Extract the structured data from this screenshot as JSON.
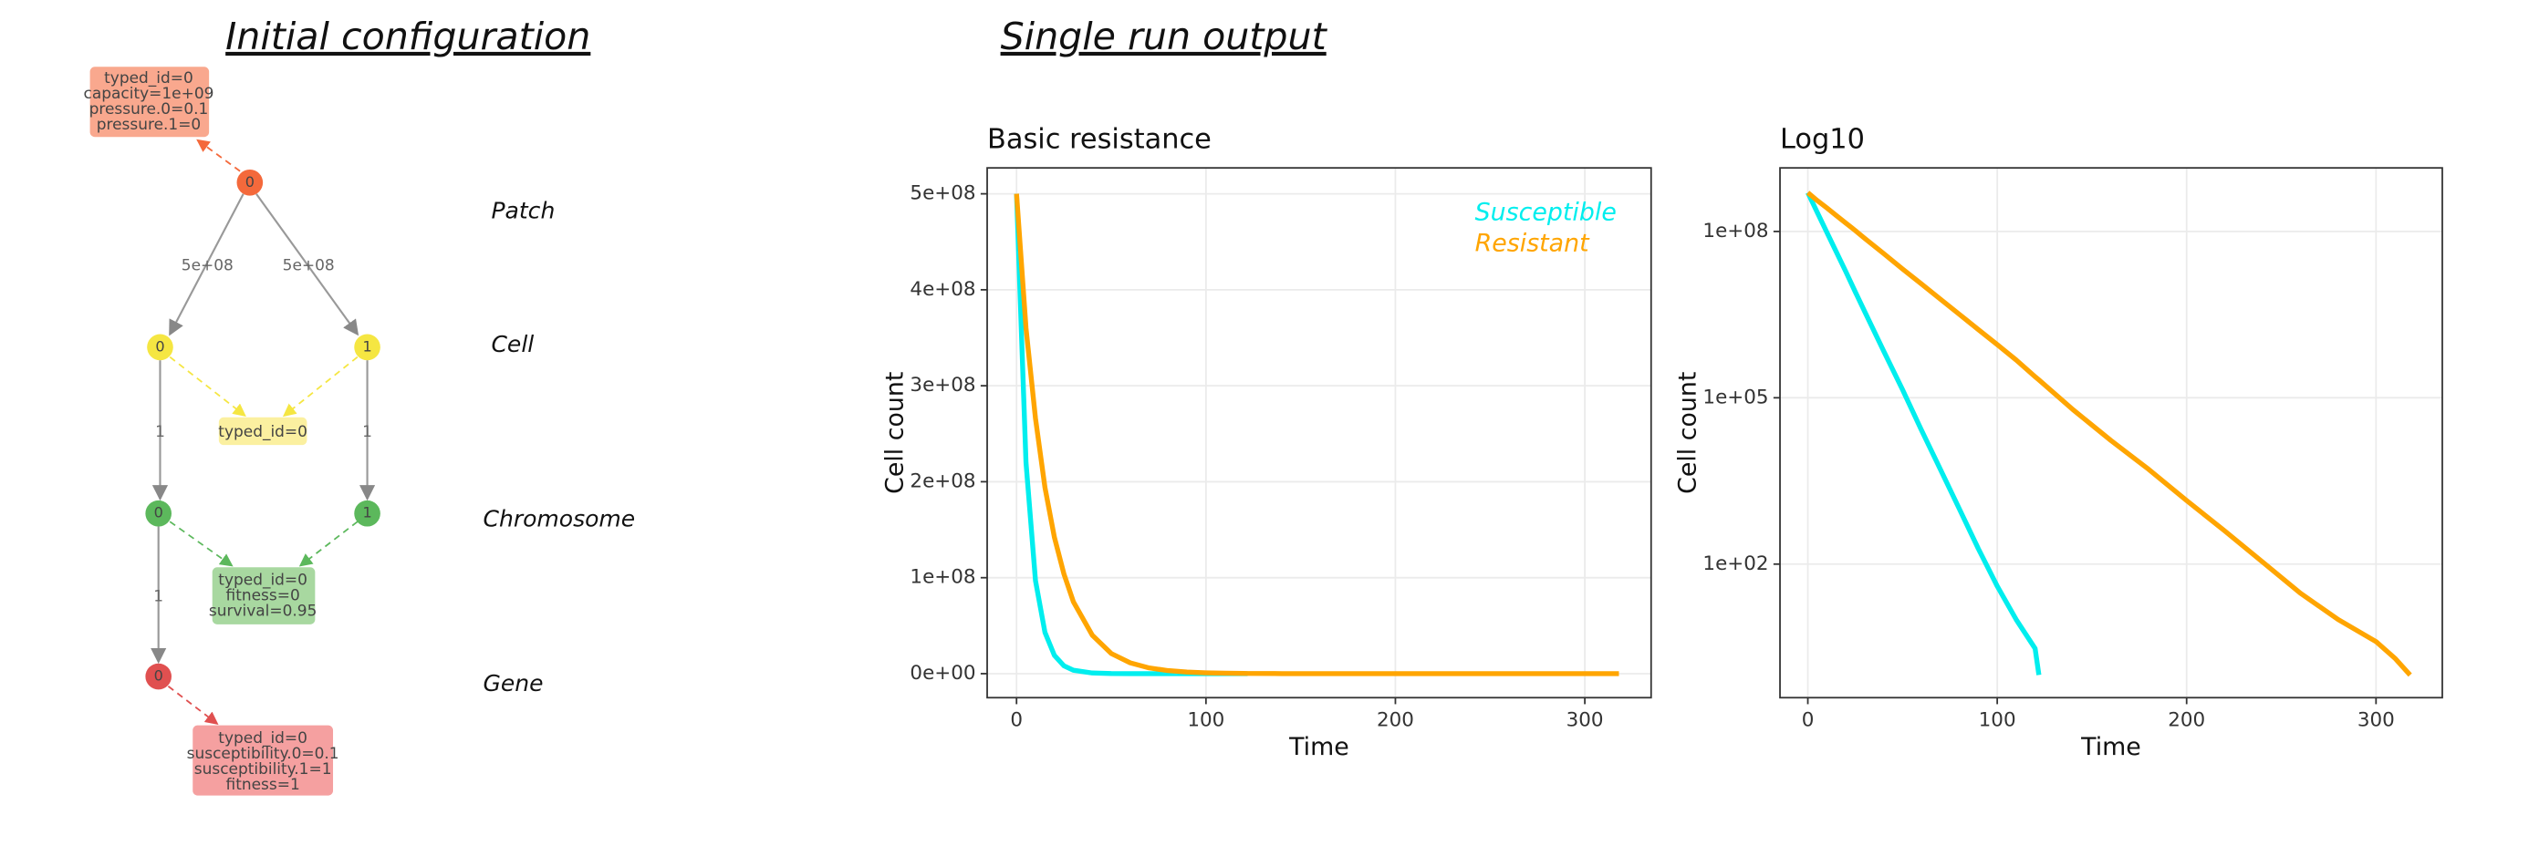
{
  "diagram": {
    "title": "Initial configuration",
    "levels": [
      "Patch",
      "Cell",
      "Chromosome",
      "Gene"
    ],
    "nodes": [
      "0",
      "0",
      "1",
      "0",
      "1",
      "0"
    ],
    "edge_labels": [
      "5e+08",
      "5e+08",
      "1",
      "1",
      "1"
    ],
    "boxes": [
      [
        "typed_id=0",
        "capacity=1e+09",
        "pressure.0=0.1",
        "pressure.1=0"
      ],
      [
        "typed_id=0"
      ],
      [
        "typed_id=0",
        "fitness=0",
        "survival=0.95"
      ],
      [
        "typed_id=0",
        "susceptibility.0=0.1",
        "susceptibility.1=1",
        "fitness=1"
      ]
    ]
  },
  "output_title": "Single run output",
  "chart_data": [
    {
      "type": "line",
      "title": "Basic resistance",
      "x_label": "Time",
      "y_label": "Cell count",
      "log_y": false,
      "grid": true,
      "legend": "top-right",
      "x": [
        0,
        5,
        10,
        15,
        20,
        25,
        30,
        40,
        50,
        60,
        70,
        80,
        90,
        100,
        110,
        120,
        122,
        140,
        160,
        180,
        200,
        220,
        240,
        260,
        280,
        300,
        310,
        318
      ],
      "series": [
        {
          "name": "Susceptible",
          "color": "#00eeee",
          "values": [
            500000000,
            220000000,
            97000000,
            43000000,
            19000000,
            8200000,
            3600000,
            700000,
            140000,
            26000,
            5100,
            990,
            190,
            40,
            10,
            3,
            1,
            null,
            null,
            null,
            null,
            null,
            null,
            null,
            null,
            null,
            null,
            null
          ]
        },
        {
          "name": "Resistant",
          "color": "#ffa500",
          "values": [
            500000000,
            360000000,
            266000000,
            194000000,
            142000000,
            104000000,
            75000000,
            40000000,
            21000000,
            11300000,
            6000000,
            3200000,
            1700000,
            910000,
            480000,
            240000,
            210000,
            61000,
            17000,
            5100,
            1400,
            400,
            110,
            30,
            10,
            4,
            2,
            1
          ]
        }
      ],
      "xlim": [
        -15.5,
        335
      ],
      "xticks": [
        0,
        100,
        200,
        300
      ],
      "ylim": [
        -25000000,
        527000000
      ],
      "yticks": [
        {
          "value": 0,
          "label": "0e+00"
        },
        {
          "value": 100000000,
          "label": "1e+08"
        },
        {
          "value": 200000000,
          "label": "2e+08"
        },
        {
          "value": 300000000,
          "label": "3e+08"
        },
        {
          "value": 400000000,
          "label": "4e+08"
        },
        {
          "value": 500000000,
          "label": "5e+08"
        }
      ]
    },
    {
      "type": "line",
      "title": "Log10",
      "x_label": "Time",
      "y_label": "Cell count",
      "log_y": true,
      "grid": true,
      "legend": false,
      "x": [
        0,
        5,
        10,
        15,
        20,
        25,
        30,
        40,
        50,
        60,
        70,
        80,
        90,
        100,
        110,
        120,
        122,
        140,
        160,
        180,
        200,
        220,
        240,
        260,
        280,
        300,
        310,
        318
      ],
      "series": [
        {
          "name": "Susceptible",
          "color": "#00eeee",
          "values": [
            500000000,
            220000000,
            97000000,
            43000000,
            19000000,
            8200000,
            3600000,
            700000,
            140000,
            26000,
            5100,
            990,
            190,
            40,
            10,
            3,
            1,
            null,
            null,
            null,
            null,
            null,
            null,
            null,
            null,
            null,
            null,
            null
          ]
        },
        {
          "name": "Resistant",
          "color": "#ffa500",
          "values": [
            500000000,
            360000000,
            266000000,
            194000000,
            142000000,
            104000000,
            75000000,
            40000000,
            21000000,
            11300000,
            6000000,
            3200000,
            1700000,
            910000,
            480000,
            240000,
            210000,
            61000,
            17000,
            5100,
            1400,
            400,
            110,
            30,
            10,
            4,
            2,
            1
          ]
        }
      ],
      "xlim": [
        -14.7,
        335
      ],
      "xticks": [
        0,
        100,
        200,
        300
      ],
      "ylim": [
        0.39,
        1400000000
      ],
      "yticks": [
        {
          "value": 100,
          "label": "1e+02"
        },
        {
          "value": 100000,
          "label": "1e+05"
        },
        {
          "value": 100000000,
          "label": "1e+08"
        }
      ]
    }
  ]
}
